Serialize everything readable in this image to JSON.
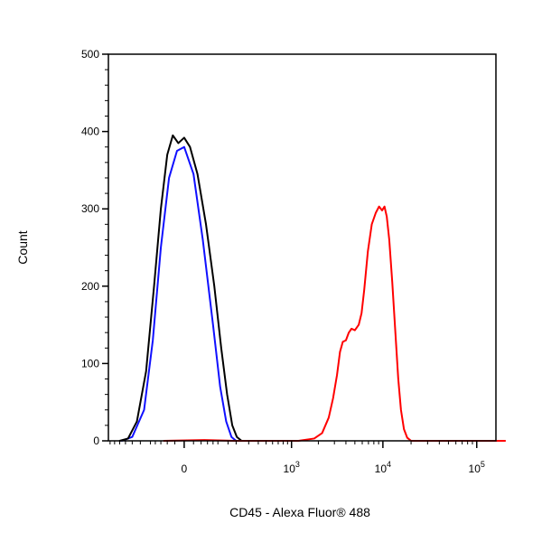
{
  "chart_data": {
    "type": "line",
    "title": "",
    "xlabel": "CD45 - Alexa Fluor® 488",
    "ylabel": "Count",
    "xscale": "biexponential",
    "ylim": [
      0,
      500
    ],
    "y_ticks": [
      {
        "value": 0,
        "label": "0"
      },
      {
        "value": 100,
        "label": "100"
      },
      {
        "value": 200,
        "label": "200"
      },
      {
        "value": 300,
        "label": "300"
      },
      {
        "value": 400,
        "label": "400"
      },
      {
        "value": 500,
        "label": "500"
      }
    ],
    "x_ticks": [
      {
        "value": 0,
        "base": "0",
        "exp": ""
      },
      {
        "value": 1000,
        "base": "10",
        "exp": "3"
      },
      {
        "value": 10000,
        "base": "10",
        "exp": "4"
      },
      {
        "value": 100000,
        "base": "10",
        "exp": "5"
      }
    ],
    "grid": false,
    "series": [
      {
        "color": "#1010ff",
        "points": [
          [
            -280,
            0
          ],
          [
            -200,
            5
          ],
          [
            -130,
            40
          ],
          [
            -90,
            130
          ],
          [
            -60,
            250
          ],
          [
            -35,
            340
          ],
          [
            -15,
            375
          ],
          [
            0,
            380
          ],
          [
            20,
            345
          ],
          [
            45,
            260
          ],
          [
            80,
            150
          ],
          [
            110,
            70
          ],
          [
            140,
            25
          ],
          [
            170,
            5
          ],
          [
            200,
            0
          ]
        ]
      },
      {
        "color": "#000000",
        "points": [
          [
            -300,
            0
          ],
          [
            -230,
            3
          ],
          [
            -170,
            25
          ],
          [
            -120,
            90
          ],
          [
            -85,
            200
          ],
          [
            -60,
            300
          ],
          [
            -40,
            370
          ],
          [
            -25,
            395
          ],
          [
            -12,
            385
          ],
          [
            0,
            392
          ],
          [
            12,
            380
          ],
          [
            30,
            345
          ],
          [
            55,
            280
          ],
          [
            85,
            200
          ],
          [
            115,
            120
          ],
          [
            145,
            60
          ],
          [
            175,
            20
          ],
          [
            205,
            5
          ],
          [
            240,
            0
          ]
        ]
      },
      {
        "color": "#ff0000",
        "points": [
          [
            -50,
            0
          ],
          [
            50,
            1
          ],
          [
            200,
            0
          ],
          [
            1200,
            0
          ],
          [
            1800,
            3
          ],
          [
            2200,
            10
          ],
          [
            2600,
            30
          ],
          [
            2900,
            55
          ],
          [
            3200,
            85
          ],
          [
            3450,
            115
          ],
          [
            3700,
            128
          ],
          [
            4000,
            130
          ],
          [
            4300,
            140
          ],
          [
            4600,
            145
          ],
          [
            5000,
            143
          ],
          [
            5500,
            150
          ],
          [
            5900,
            165
          ],
          [
            6300,
            195
          ],
          [
            6900,
            245
          ],
          [
            7600,
            280
          ],
          [
            8400,
            295
          ],
          [
            9100,
            303
          ],
          [
            9800,
            298
          ],
          [
            10400,
            303
          ],
          [
            11000,
            290
          ],
          [
            11700,
            260
          ],
          [
            12600,
            205
          ],
          [
            13600,
            140
          ],
          [
            14600,
            80
          ],
          [
            15600,
            40
          ],
          [
            16800,
            15
          ],
          [
            18200,
            4
          ],
          [
            20000,
            0
          ],
          [
            30000,
            0
          ],
          [
            200000,
            0
          ]
        ]
      }
    ]
  }
}
